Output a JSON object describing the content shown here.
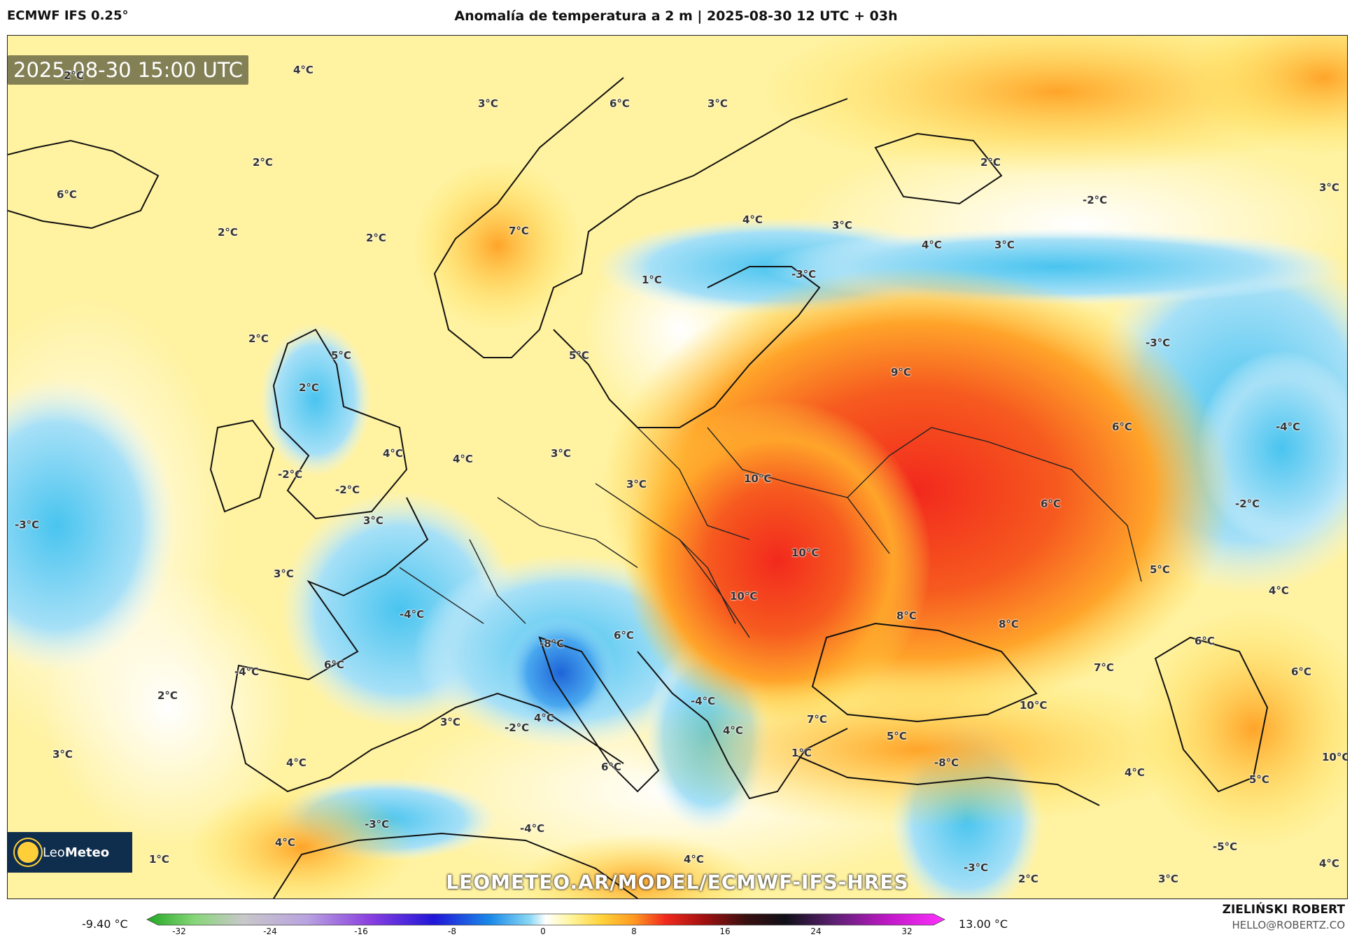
{
  "header": {
    "model": "ECMWF IFS 0.25°",
    "title": "Anomalía de temperatura a 2 m | 2025-08-30 12 UTC + 03h"
  },
  "map": {
    "valid_time": "2025-08-30 15:00 UTC",
    "watermark": "LEOMETEO.AR/MODEL/ECMWF-IFS-HRES",
    "logo_text_leo": "Leo",
    "logo_text_meteo": "Meteo",
    "logo_icon": "sun-icon",
    "labels": [
      "2°C",
      "4°C",
      "3°C",
      "6°C",
      "3°C",
      "6°C",
      "2°C",
      "2°C",
      "2°C",
      "7°C",
      "4°C",
      "3°C",
      "2°C",
      "-2°C",
      "3°C",
      "4°C",
      "3°C",
      "1°C",
      "-3°C",
      "2°C",
      "5°C",
      "5°C",
      "2°C",
      "9°C",
      "-3°C",
      "6°C",
      "-4°C",
      "4°C",
      "4°C",
      "3°C",
      "-2°C",
      "3°C",
      "10°C",
      "-2°C",
      "3°C",
      "-3°C",
      "6°C",
      "-2°C",
      "3°C",
      "5°C",
      "4°C",
      "-4°C",
      "10°C",
      "10°C",
      "6°C",
      "-4°C",
      "-8°C",
      "6°C",
      "8°C",
      "8°C",
      "7°C",
      "6°C",
      "2°C",
      "6°C",
      "-4°C",
      "-2°C",
      "4°C",
      "7°C",
      "10°C",
      "3°C",
      "4°C",
      "5°C",
      "3°C",
      "-8°C",
      "1°C",
      "6°C",
      "4°C",
      "5°C",
      "10°C",
      "4°C",
      "-3°C",
      "-4°C",
      "4°C",
      "1°C",
      "-3°C",
      "2°C",
      "3°C",
      "-5°C",
      "4°C",
      "4°C"
    ]
  },
  "colorbar": {
    "min_label": "-9.40 °C",
    "max_label": "13.00 °C",
    "ticks": [
      "-32",
      "-24",
      "-16",
      "-8",
      "0",
      "8",
      "16",
      "24",
      "32"
    ]
  },
  "footer": {
    "author": "ZIELIŃSKI ROBERT",
    "email": "HELLO@ROBERTZ.CO"
  },
  "colors": {
    "warm_yellow": "#ffe44a",
    "warm_orange": "#ffa42a",
    "hot_red": "#f2291d",
    "cool_light": "#c8ecfa",
    "cool_blue": "#49c4ef",
    "cold_deep": "#1e64d8"
  }
}
